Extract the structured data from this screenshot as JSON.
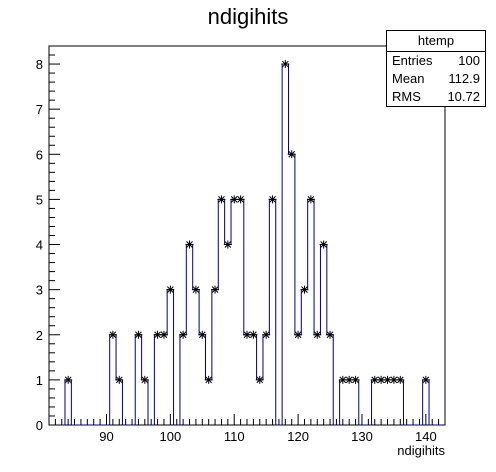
{
  "chart_data": {
    "type": "histogram",
    "title": "ndigihits",
    "xlabel": "ndigihits",
    "ylabel": "",
    "xlim": [
      81,
      143
    ],
    "ylim": [
      0,
      8.4
    ],
    "xticks": [
      90,
      100,
      110,
      120,
      130,
      140
    ],
    "yticks": [
      0,
      1,
      2,
      3,
      4,
      5,
      6,
      7,
      8
    ],
    "bin_width": 1,
    "x": [
      84,
      91,
      92,
      95,
      96,
      98,
      99,
      100,
      102,
      103,
      104,
      105,
      106,
      107,
      108,
      109,
      110,
      111,
      112,
      113,
      114,
      115,
      116,
      118,
      119,
      120,
      121,
      122,
      123,
      124,
      125,
      127,
      128,
      129,
      132,
      133,
      134,
      135,
      136,
      140
    ],
    "values": [
      1,
      2,
      1,
      2,
      1,
      2,
      2,
      3,
      2,
      4,
      3,
      2,
      1,
      3,
      5,
      4,
      5,
      5,
      2,
      2,
      1,
      2,
      5,
      8,
      6,
      2,
      3,
      5,
      2,
      4,
      2,
      1,
      1,
      1,
      1,
      1,
      1,
      1,
      1,
      1
    ],
    "line_color": "#000080",
    "marker": "asterisk",
    "stats": {
      "name": "htemp",
      "entries_label": "Entries",
      "entries": "100",
      "mean_label": "Mean",
      "mean": "112.9",
      "rms_label": "RMS",
      "rms": "10.72"
    }
  }
}
